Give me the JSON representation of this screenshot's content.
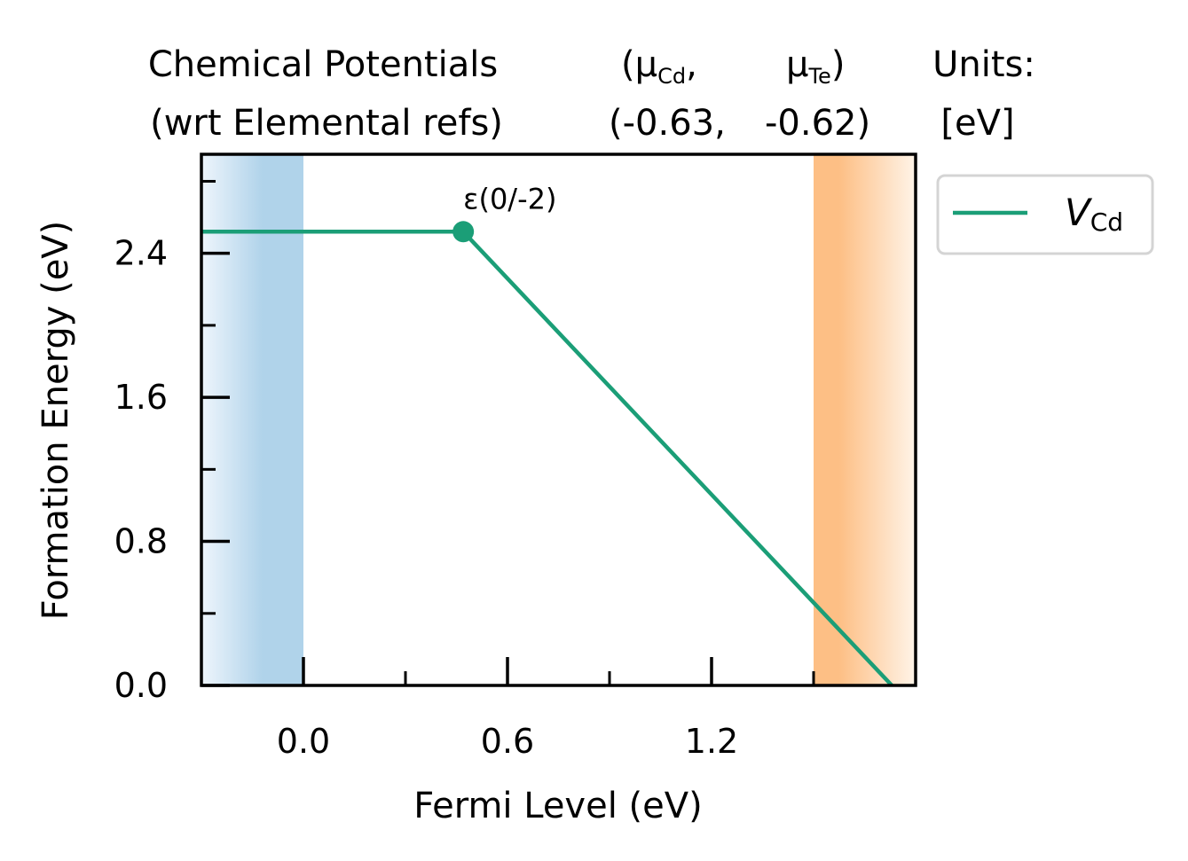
{
  "chart_data": {
    "type": "line",
    "title_lines": {
      "left": [
        "Chemical Potentials",
        "(wrt Elemental refs)"
      ],
      "mid_line1_a": "(μ",
      "mid_line1_a_sub": "Cd",
      "mid_line1_a_end": ",",
      "mid_line1_b": "μ",
      "mid_line1_b_sub": "Te",
      "mid_line1_b_end": ")",
      "mid_line2_a": "(-0.63,",
      "mid_line2_b": "-0.62)",
      "right": [
        "Units:",
        "[eV]"
      ]
    },
    "xlabel": "Fermi Level (eV)",
    "ylabel": "Formation Energy (eV)",
    "xlim": [
      -0.3,
      1.8
    ],
    "ylim": [
      0.0,
      2.95
    ],
    "x_ticks": [
      0.0,
      0.6,
      1.2
    ],
    "x_tick_labels": [
      "0.0",
      "0.6",
      "1.2"
    ],
    "x_minor_ticks": [
      0.3,
      0.9,
      1.5
    ],
    "y_ticks": [
      0.0,
      0.8,
      1.6,
      2.4
    ],
    "y_tick_labels": [
      "0.0",
      "0.8",
      "1.6",
      "2.4"
    ],
    "y_minor_ticks": [
      0.4,
      1.2,
      2.0,
      2.8
    ],
    "vbm": 0.0,
    "cbm": 1.5,
    "vbm_color": "#b0d3ea",
    "cbm_color": "#fdbf85",
    "series": [
      {
        "name": "V",
        "name_sub": "Cd",
        "color": "#1b9e77",
        "x": [
          -0.3,
          0.47,
          1.8
        ],
        "y": [
          2.52,
          2.52,
          -0.14
        ]
      }
    ],
    "transition_levels": [
      {
        "label": "ε(0/-2)",
        "x": 0.47,
        "y": 2.52
      }
    ],
    "legend_position": "outside-top-right",
    "grid": false
  }
}
